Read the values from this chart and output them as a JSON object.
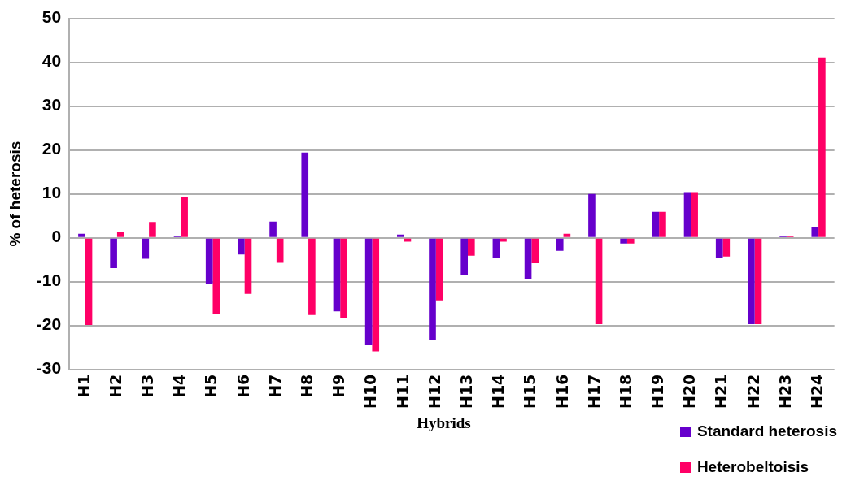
{
  "chart_data": {
    "type": "bar",
    "xlabel": "Hybrids",
    "ylabel": "% of heterosis",
    "categories": [
      "H1",
      "H2",
      "H3",
      "H4",
      "H5",
      "H6",
      "H7",
      "H8",
      "H9",
      "H10",
      "H11",
      "H12",
      "H13",
      "H14",
      "H15",
      "H16",
      "H17",
      "H18",
      "H19",
      "H20",
      "H21",
      "H22",
      "H23",
      "H24"
    ],
    "series": [
      {
        "name": "Standard heterosis",
        "color": "#6600cc",
        "values": [
          0.9,
          -6.9,
          -4.8,
          0.4,
          -10.6,
          -3.8,
          3.7,
          19.4,
          -16.8,
          -24.5,
          0.7,
          -23.2,
          -8.4,
          -4.6,
          -9.5,
          -3.0,
          10.0,
          -1.3,
          5.9,
          10.4,
          -4.6,
          -19.7,
          0.4,
          2.5
        ]
      },
      {
        "name": "Heterobeltoisis",
        "color": "#ff0066",
        "values": [
          -19.9,
          1.3,
          3.6,
          9.3,
          -17.4,
          -12.8,
          -5.7,
          -17.6,
          -18.3,
          -25.9,
          -0.9,
          -14.3,
          -4.1,
          -0.9,
          -5.8,
          0.9,
          -19.7,
          -1.3,
          5.9,
          10.4,
          -4.3,
          -19.7,
          0.4,
          41.1
        ]
      }
    ],
    "ylim": [
      -30,
      50
    ],
    "yticks": [
      -30,
      -20,
      -10,
      0,
      10,
      20,
      30,
      40,
      50
    ],
    "grid": "y",
    "legend": "bottom right"
  }
}
